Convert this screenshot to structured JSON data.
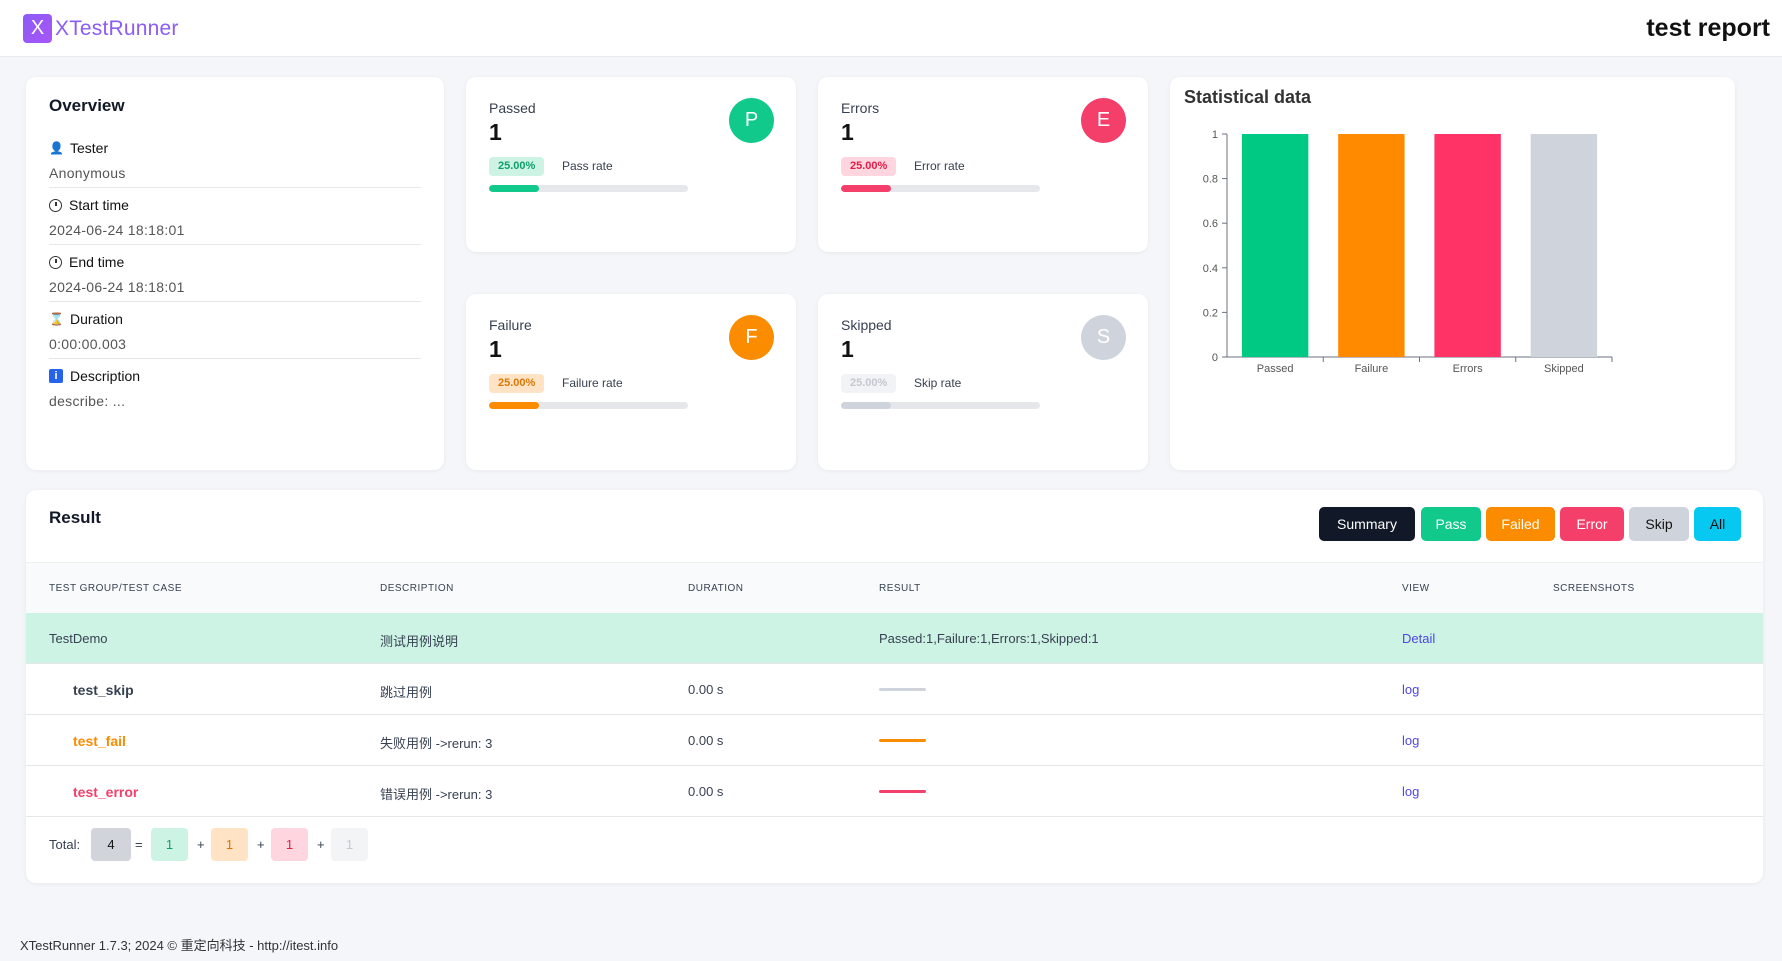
{
  "header": {
    "logo_letter": "X",
    "app_name": "XTestRunner",
    "report_title": "test report"
  },
  "overview": {
    "title": "Overview",
    "tester_label": "Tester",
    "tester_value": "Anonymous",
    "start_label": "Start time",
    "start_value": "2024-06-24 18:18:01",
    "end_label": "End time",
    "end_value": "2024-06-24 18:18:01",
    "duration_label": "Duration",
    "duration_value": "0:00:00.003",
    "description_label": "Description",
    "description_value": "describe: ...",
    "icons": [
      "user-icon",
      "clock-icon",
      "clock-icon",
      "hourglass-icon",
      "info-icon"
    ]
  },
  "stats": {
    "passed": {
      "label": "Passed",
      "value": "1",
      "letter": "P",
      "badge": "25.00%",
      "rate_label": "Pass rate",
      "rate": 0.25,
      "color": "#10c98b"
    },
    "errors": {
      "label": "Errors",
      "value": "1",
      "letter": "E",
      "badge": "25.00%",
      "rate_label": "Error rate",
      "rate": 0.25,
      "color": "#f43f6b"
    },
    "failure": {
      "label": "Failure",
      "value": "1",
      "letter": "F",
      "badge": "25.00%",
      "rate_label": "Failure rate",
      "rate": 0.25,
      "color": "#fb8c00"
    },
    "skipped": {
      "label": "Skipped",
      "value": "1",
      "letter": "S",
      "badge": "25.00%",
      "rate_label": "Skip rate",
      "rate": 0.25,
      "color": "#cfd4dc"
    }
  },
  "chart_data": {
    "type": "bar",
    "title": "Statistical data",
    "categories": [
      "Passed",
      "Failure",
      "Errors",
      "Skipped"
    ],
    "values": [
      1,
      1,
      1,
      1
    ],
    "colors": [
      "#00c983",
      "#ff8a00",
      "#ff3366",
      "#cfd4dc"
    ],
    "y_ticks": [
      "0",
      "0.2",
      "0.4",
      "0.6",
      "0.8",
      "1"
    ],
    "ylim": [
      0,
      1
    ],
    "grid": false,
    "legend": "none"
  },
  "result": {
    "title": "Result",
    "filters": [
      {
        "label": "Summary",
        "color": "#111827"
      },
      {
        "label": "Pass",
        "color": "#10c98b"
      },
      {
        "label": "Failed",
        "color": "#fb8c00"
      },
      {
        "label": "Error",
        "color": "#f43f6b"
      },
      {
        "label": "Skip",
        "color": "#cfd4dc"
      },
      {
        "label": "All",
        "color": "#06c8f0"
      }
    ],
    "columns": [
      "TEST GROUP/TEST CASE",
      "DESCRIPTION",
      "DURATION",
      "RESULT",
      "VIEW",
      "SCREENSHOTS"
    ],
    "group": {
      "name": "TestDemo",
      "description": "测试用例说明",
      "result": "Passed:1,Failure:1,Errors:1,Skipped:1",
      "view": "Detail"
    },
    "cases": [
      {
        "name": "test_skip",
        "description": "跳过用例",
        "duration": "0.00 s",
        "view": "log",
        "status": "skip",
        "color": "#374151",
        "line_color": "#cfd4dc"
      },
      {
        "name": "test_fail",
        "description": "失败用例 ->rerun: 3",
        "duration": "0.00 s",
        "view": "log",
        "status": "fail",
        "color": "#fb8c00",
        "line_color": "#fb8c00"
      },
      {
        "name": "test_error",
        "description": "错误用例 ->rerun: 3",
        "duration": "0.00 s",
        "view": "log",
        "status": "error",
        "color": "#f43f6b",
        "line_color": "#f43f6b"
      }
    ],
    "total": {
      "label": "Total:",
      "all": "4",
      "eq": "=",
      "plus": "+",
      "pass": "1",
      "fail": "1",
      "error": "1",
      "skip": "1"
    }
  },
  "footer": {
    "text": "XTestRunner 1.7.3; 2024 © 重定向科技 - http://itest.info"
  }
}
